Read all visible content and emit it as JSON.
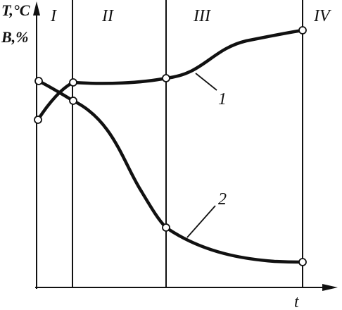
{
  "axes": {
    "y_label_temperature": "T,°C",
    "y_label_moisture": "B,%",
    "x_label": "t"
  },
  "zones": [
    "I",
    "II",
    "III",
    "IV"
  ],
  "curves": [
    {
      "label": "1"
    },
    {
      "label": "2"
    }
  ]
}
